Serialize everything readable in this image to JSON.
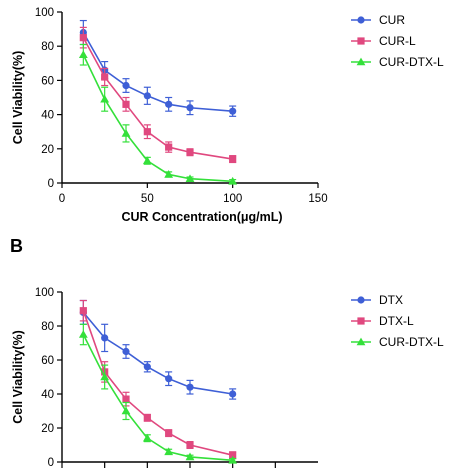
{
  "chart_data": [
    {
      "type": "line",
      "panel_label": "",
      "xlabel": "CUR Concentration(μg/mL)",
      "ylabel": "Cell Viability(%)",
      "xlim": [
        0,
        150
      ],
      "ylim": [
        0,
        100
      ],
      "xticks": [
        0,
        50,
        100,
        150
      ],
      "yticks": [
        0,
        20,
        40,
        60,
        80,
        100
      ],
      "legend_position": "top-right",
      "x": [
        12.5,
        25,
        37.5,
        50,
        62.5,
        75,
        100
      ],
      "series": [
        {
          "name": "CUR",
          "color": "#3e5fd6",
          "marker": "circle",
          "values": [
            88,
            66,
            57,
            51,
            46,
            44,
            42
          ],
          "errors": [
            7,
            5,
            4,
            5,
            4,
            4,
            3
          ]
        },
        {
          "name": "CUR-L",
          "color": "#e0487f",
          "marker": "square",
          "values": [
            85,
            62,
            46,
            30,
            21,
            18,
            14
          ],
          "errors": [
            6,
            5,
            4,
            4,
            3,
            2,
            2
          ]
        },
        {
          "name": "CUR-DTX-L",
          "color": "#34e03a",
          "marker": "triangle",
          "values": [
            75,
            49,
            29,
            13,
            5,
            2.5,
            1
          ],
          "errors": [
            6,
            7,
            5,
            2,
            1.5,
            1,
            1
          ]
        }
      ]
    },
    {
      "type": "line",
      "panel_label": "B",
      "xlabel": "",
      "ylabel": "Cell Viability(%)",
      "xlim": [
        0,
        150
      ],
      "ylim": [
        0,
        100
      ],
      "xticks": [],
      "yticks": [
        0,
        20,
        40,
        60,
        80,
        100
      ],
      "legend_position": "top-right",
      "x": [
        12.5,
        25,
        37.5,
        50,
        62.5,
        75,
        100
      ],
      "series": [
        {
          "name": "DTX",
          "color": "#3e5fd6",
          "marker": "circle",
          "values": [
            88,
            73,
            65,
            56,
            49,
            44,
            40
          ],
          "errors": [
            7,
            8,
            4,
            3,
            4,
            4,
            3
          ]
        },
        {
          "name": "DTX-L",
          "color": "#e0487f",
          "marker": "square",
          "values": [
            89,
            53,
            37,
            26,
            17,
            10,
            4
          ],
          "errors": [
            6,
            6,
            4,
            2,
            2,
            2,
            2
          ]
        },
        {
          "name": "CUR-DTX-L",
          "color": "#34e03a",
          "marker": "triangle",
          "values": [
            75,
            50,
            30,
            14,
            6,
            3,
            1
          ],
          "errors": [
            6,
            7,
            5,
            2,
            1.5,
            1,
            1
          ]
        }
      ]
    }
  ]
}
